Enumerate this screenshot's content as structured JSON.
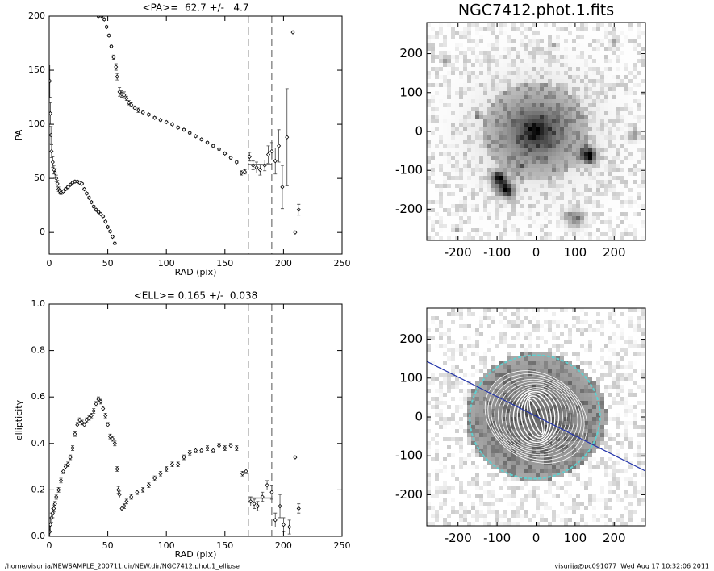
{
  "footer": {
    "left": "/home/visurija/NEWSAMPLE_200711.dir/NEW.dir/NGC7412.phot.1_ellipse",
    "right": "visurija@pc091077  Wed Aug 17 10:32:06 2011"
  },
  "chart_data": [
    {
      "type": "scatter",
      "title": "<PA>=  62.7 +/-   4.7",
      "xlabel": "RAD (pix)",
      "ylabel": "PA",
      "xlim": [
        0,
        250
      ],
      "ylim": [
        -20,
        200
      ],
      "xticks": [
        0,
        50,
        100,
        150,
        200,
        250
      ],
      "yticks": [
        0,
        50,
        100,
        150,
        200
      ],
      "vlines": [
        170,
        190
      ],
      "mean_segment": {
        "x": [
          170,
          190
        ],
        "y": 62.7
      },
      "x": [
        0.5,
        1,
        1.5,
        2,
        3,
        4,
        5,
        6,
        7,
        8,
        9,
        10,
        12,
        14,
        16,
        18,
        20,
        22,
        24,
        26,
        28,
        30,
        32,
        34,
        36,
        38,
        40,
        42,
        44,
        46,
        48,
        50,
        52,
        54,
        56,
        42,
        45,
        47,
        49,
        51,
        53,
        55,
        57,
        58,
        60,
        62,
        64,
        66,
        68,
        70,
        73,
        76,
        80,
        85,
        90,
        95,
        100,
        105,
        110,
        115,
        120,
        125,
        130,
        135,
        140,
        145,
        150,
        155,
        160,
        164,
        167,
        171,
        174,
        177,
        180,
        184,
        187,
        190,
        193,
        196,
        199,
        203,
        208,
        210,
        213
      ],
      "values": [
        140,
        110,
        90,
        75,
        65,
        58,
        55,
        50,
        45,
        40,
        38,
        37,
        38,
        40,
        42,
        44,
        46,
        47,
        47,
        46,
        45,
        40,
        36,
        32,
        28,
        24,
        21,
        19,
        17,
        15,
        10,
        5,
        1,
        -4,
        -10,
        200,
        200,
        197,
        190,
        182,
        172,
        162,
        153,
        144,
        130,
        128,
        127,
        124,
        120,
        118,
        115,
        113,
        111,
        109,
        106,
        104,
        102,
        100,
        97,
        95,
        92,
        89,
        86,
        83,
        80,
        77,
        73,
        69,
        65,
        55,
        56,
        70,
        62,
        60,
        58,
        62,
        72,
        75,
        66,
        80,
        42,
        88,
        185,
        0,
        21
      ],
      "errors": [
        15,
        10,
        8,
        6,
        5,
        4,
        4,
        3,
        3,
        2,
        2,
        2,
        1,
        1,
        1,
        1,
        1,
        1,
        1,
        1,
        1,
        1,
        1,
        1,
        1,
        1,
        1,
        1,
        1,
        1,
        1,
        1,
        1,
        1,
        1,
        1,
        1,
        1,
        1,
        1,
        1,
        2,
        3,
        3,
        4,
        3,
        3,
        2,
        2,
        2,
        2,
        2,
        1,
        1,
        1,
        1,
        1,
        1,
        1,
        1,
        1,
        1,
        1,
        1,
        1,
        1,
        1,
        1,
        1,
        2,
        2,
        4,
        4,
        5,
        5,
        5,
        8,
        8,
        12,
        15,
        20,
        45,
        0,
        0,
        5
      ]
    },
    {
      "type": "scatter",
      "title": "<ELL>= 0.165 +/-  0.038",
      "xlabel": "RAD (pix)",
      "ylabel": "ellipticity",
      "xlim": [
        0,
        250
      ],
      "ylim": [
        0,
        1
      ],
      "xticks": [
        0,
        50,
        100,
        150,
        200,
        250
      ],
      "yticks": [
        {
          "value": 0,
          "label": "0.0"
        },
        0.2,
        0.4,
        0.6,
        0.8,
        {
          "value": 1,
          "label": "1.0"
        }
      ],
      "vlines": [
        170,
        190
      ],
      "mean_segment": {
        "x": [
          170,
          190
        ],
        "y": 0.165
      },
      "x": [
        0.5,
        1,
        2,
        3,
        4,
        5,
        6,
        8,
        10,
        12,
        14,
        16,
        18,
        20,
        22,
        24,
        26,
        28,
        30,
        32,
        34,
        36,
        38,
        40,
        42,
        44,
        46,
        48,
        50,
        52,
        54,
        56,
        58,
        59,
        60,
        62,
        64,
        66,
        70,
        75,
        80,
        85,
        90,
        95,
        100,
        105,
        110,
        115,
        120,
        125,
        130,
        135,
        140,
        145,
        150,
        155,
        160,
        165,
        168,
        172,
        175,
        178,
        182,
        186,
        190,
        193,
        197,
        200,
        205,
        210,
        213
      ],
      "values": [
        0.02,
        0.05,
        0.08,
        0.1,
        0.12,
        0.14,
        0.17,
        0.2,
        0.24,
        0.28,
        0.3,
        0.31,
        0.34,
        0.38,
        0.44,
        0.48,
        0.5,
        0.49,
        0.48,
        0.5,
        0.51,
        0.52,
        0.54,
        0.57,
        0.59,
        0.58,
        0.55,
        0.52,
        0.48,
        0.43,
        0.42,
        0.4,
        0.29,
        0.2,
        0.18,
        0.12,
        0.13,
        0.15,
        0.17,
        0.19,
        0.2,
        0.22,
        0.25,
        0.27,
        0.29,
        0.31,
        0.31,
        0.34,
        0.36,
        0.37,
        0.37,
        0.38,
        0.37,
        0.39,
        0.38,
        0.39,
        0.38,
        0.27,
        0.28,
        0.15,
        0.14,
        0.13,
        0.17,
        0.22,
        0.19,
        0.07,
        0.13,
        0.05,
        0.04,
        0.34,
        0.12
      ],
      "errors": [
        0.03,
        0.03,
        0.02,
        0.02,
        0.015,
        0.01,
        0.01,
        0.01,
        0.01,
        0.01,
        0.01,
        0.01,
        0.01,
        0.01,
        0.01,
        0.01,
        0.01,
        0.01,
        0.01,
        0.01,
        0.01,
        0.01,
        0.01,
        0.01,
        0.01,
        0.01,
        0.01,
        0.01,
        0.01,
        0.01,
        0.01,
        0.01,
        0.01,
        0.015,
        0.015,
        0.01,
        0.01,
        0.01,
        0.01,
        0.01,
        0.01,
        0.01,
        0.01,
        0.01,
        0.01,
        0.01,
        0.01,
        0.01,
        0.01,
        0.01,
        0.01,
        0.01,
        0.01,
        0.01,
        0.01,
        0.01,
        0.01,
        0.01,
        0.01,
        0.02,
        0.02,
        0.02,
        0.02,
        0.02,
        0.03,
        0.03,
        0.05,
        0.03,
        0.03,
        0,
        0.02
      ]
    },
    {
      "type": "image",
      "title": "NGC7412.phot.1.fits",
      "xlim": [
        -280,
        280
      ],
      "ylim": [
        -280,
        280
      ],
      "xticks": [
        -200,
        -100,
        0,
        100,
        200
      ],
      "yticks": [
        -200,
        -100,
        0,
        100,
        200
      ]
    },
    {
      "type": "image",
      "overlay": true,
      "xlim": [
        -280,
        280
      ],
      "ylim": [
        -280,
        280
      ],
      "xticks": [
        -200,
        -100,
        0,
        100,
        200
      ],
      "yticks": [
        -200,
        -100,
        0,
        100,
        200
      ]
    }
  ]
}
